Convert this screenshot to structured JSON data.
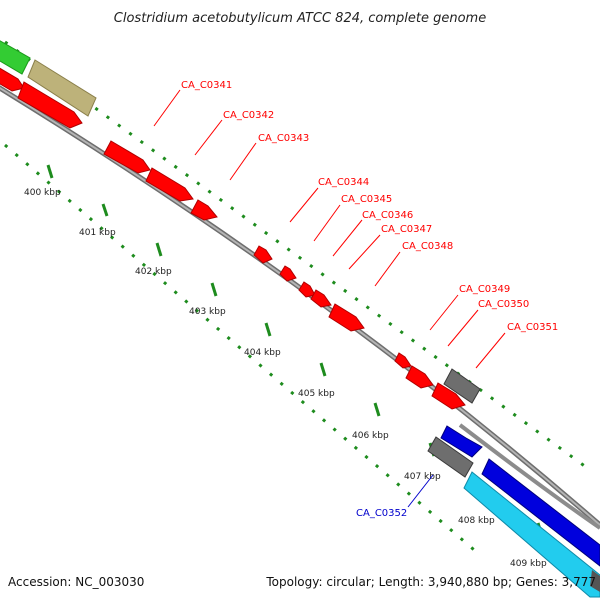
{
  "title": "Clostridium acetobutylicum ATCC 824, complete genome",
  "footer": {
    "accession": "Accession: NC_003030",
    "summary": "Topology: circular; Length: 3,940,880 bp; Genes: 3,777"
  },
  "colors": {
    "backbone": "#8c8c8c",
    "tick": "#1e8c1e",
    "gene_red": "#ff0000",
    "gene_gray": "#6e6e6e",
    "gene_blue": "#0000dd",
    "gene_cyan": "#22ccee",
    "gene_green": "#33cc33",
    "gene_olive": "#bdb27a",
    "label_red": "#ff0000",
    "label_blue": "#0000cc"
  },
  "ticks": [
    {
      "label": "400 kbp"
    },
    {
      "label": "401 kbp"
    },
    {
      "label": "402 kbp"
    },
    {
      "label": "403 kbp"
    },
    {
      "label": "404 kbp"
    },
    {
      "label": "405 kbp"
    },
    {
      "label": "406 kbp"
    },
    {
      "label": "407 kbp"
    },
    {
      "label": "408 kbp"
    },
    {
      "label": "409 kbp"
    }
  ],
  "gene_labels": [
    {
      "text": "CA_C0341",
      "color": "red"
    },
    {
      "text": "CA_C0342",
      "color": "red"
    },
    {
      "text": "CA_C0343",
      "color": "red"
    },
    {
      "text": "CA_C0344",
      "color": "red"
    },
    {
      "text": "CA_C0345",
      "color": "red"
    },
    {
      "text": "CA_C0346",
      "color": "red"
    },
    {
      "text": "CA_C0347",
      "color": "red"
    },
    {
      "text": "CA_C0348",
      "color": "red"
    },
    {
      "text": "CA_C0349",
      "color": "red"
    },
    {
      "text": "CA_C0350",
      "color": "red"
    },
    {
      "text": "CA_C0351",
      "color": "red"
    },
    {
      "text": "CA_C0352",
      "color": "blue"
    }
  ]
}
